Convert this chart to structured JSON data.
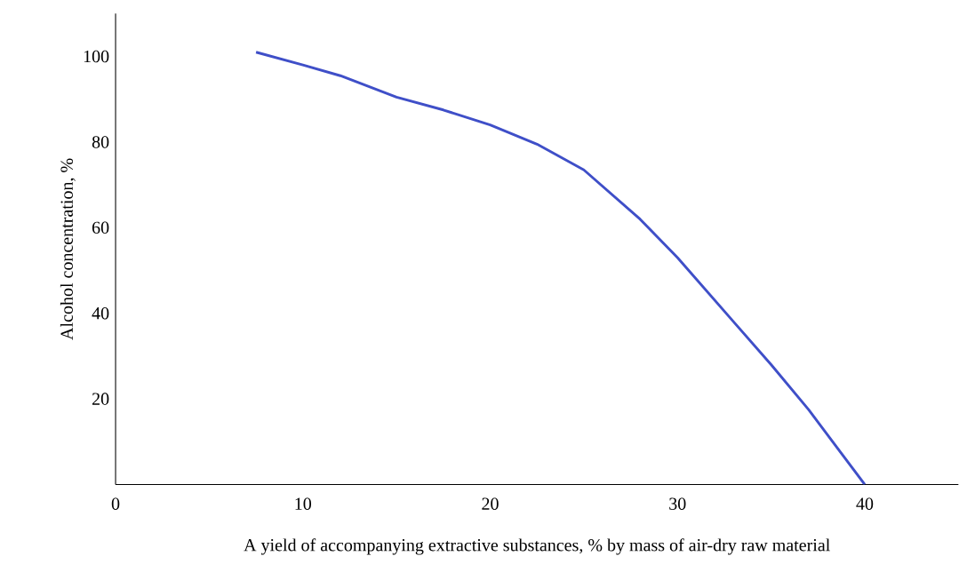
{
  "chart_data": {
    "type": "line",
    "xlabel": "A yield of accompanying extractive substances, % by mass of air-dry raw material",
    "ylabel": "Alcohol concentration, %",
    "x": [
      7.5,
      10,
      12,
      15,
      17.5,
      20,
      22.5,
      25,
      28,
      30,
      33,
      35,
      37,
      40
    ],
    "series": [
      {
        "color": "#3f4fc8",
        "values": [
          101,
          98,
          95.5,
          90.5,
          87.5,
          84,
          79.5,
          73.5,
          62,
          53,
          38,
          28,
          17.5,
          0
        ]
      }
    ],
    "xlim": [
      0,
      45
    ],
    "ylim": [
      0,
      110
    ],
    "xticks": [
      0,
      10,
      20,
      30,
      40
    ],
    "yticks": [
      20,
      40,
      60,
      80,
      100
    ],
    "grid": false,
    "marker": "none",
    "line_style": "solid"
  }
}
